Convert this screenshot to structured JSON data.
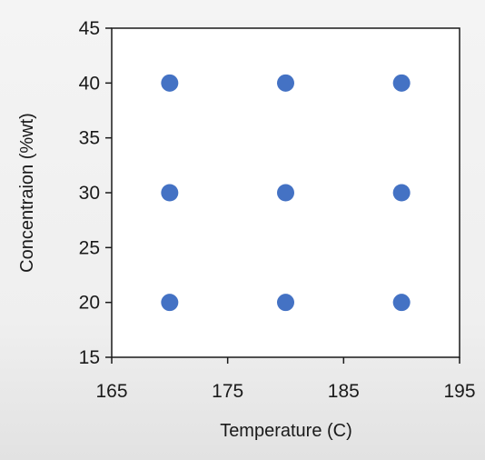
{
  "chart_data": {
    "type": "scatter",
    "title": "",
    "xlabel": "Temperature  (C)",
    "ylabel": "Concentraion  (%wt)",
    "xlim": [
      165,
      195
    ],
    "ylim": [
      15,
      45
    ],
    "xticks": [
      165,
      175,
      185,
      195
    ],
    "yticks": [
      15,
      20,
      25,
      30,
      35,
      40,
      45
    ],
    "grid": false,
    "legend": "none",
    "marker_color": "#4472c4",
    "series": [
      {
        "points": [
          {
            "x": 170,
            "y": 40
          },
          {
            "x": 180,
            "y": 40
          },
          {
            "x": 190,
            "y": 40
          },
          {
            "x": 170,
            "y": 30
          },
          {
            "x": 180,
            "y": 30
          },
          {
            "x": 190,
            "y": 30
          },
          {
            "x": 170,
            "y": 20
          },
          {
            "x": 180,
            "y": 20
          },
          {
            "x": 190,
            "y": 20
          }
        ]
      }
    ]
  }
}
